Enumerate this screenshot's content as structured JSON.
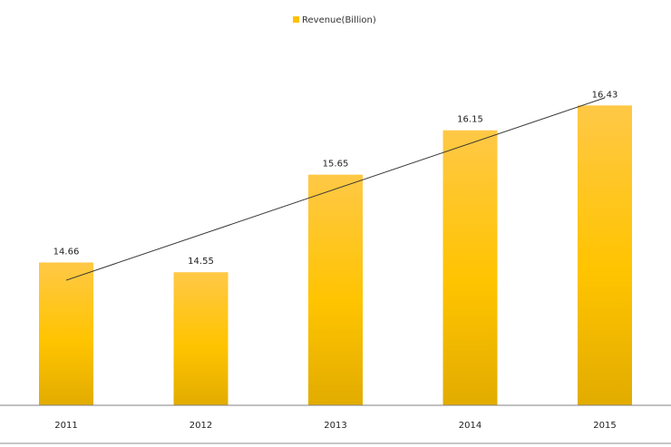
{
  "chart_data": {
    "type": "bar",
    "title": "",
    "xlabel": "",
    "ylabel": "",
    "categories": [
      "2011",
      "2012",
      "2013",
      "2014",
      "2015"
    ],
    "series": [
      {
        "name": "Revenue(Billion)",
        "values": [
          14.66,
          14.55,
          15.65,
          16.15,
          16.43
        ]
      }
    ],
    "data_labels": [
      "14.66",
      "14.55",
      "15.65",
      "16.15",
      "16.43"
    ],
    "ylim": [
      13.05,
      16.75
    ],
    "trendline": {
      "type": "linear",
      "color": "#333333"
    },
    "legend": {
      "position": "top-center"
    },
    "grid": false,
    "colors": {
      "bar_top": "#FFC846",
      "bar_mid": "#FFC400",
      "bar_bottom": "#E2AC00",
      "legend_swatch": "#FFC000",
      "axis": "#808080"
    }
  }
}
